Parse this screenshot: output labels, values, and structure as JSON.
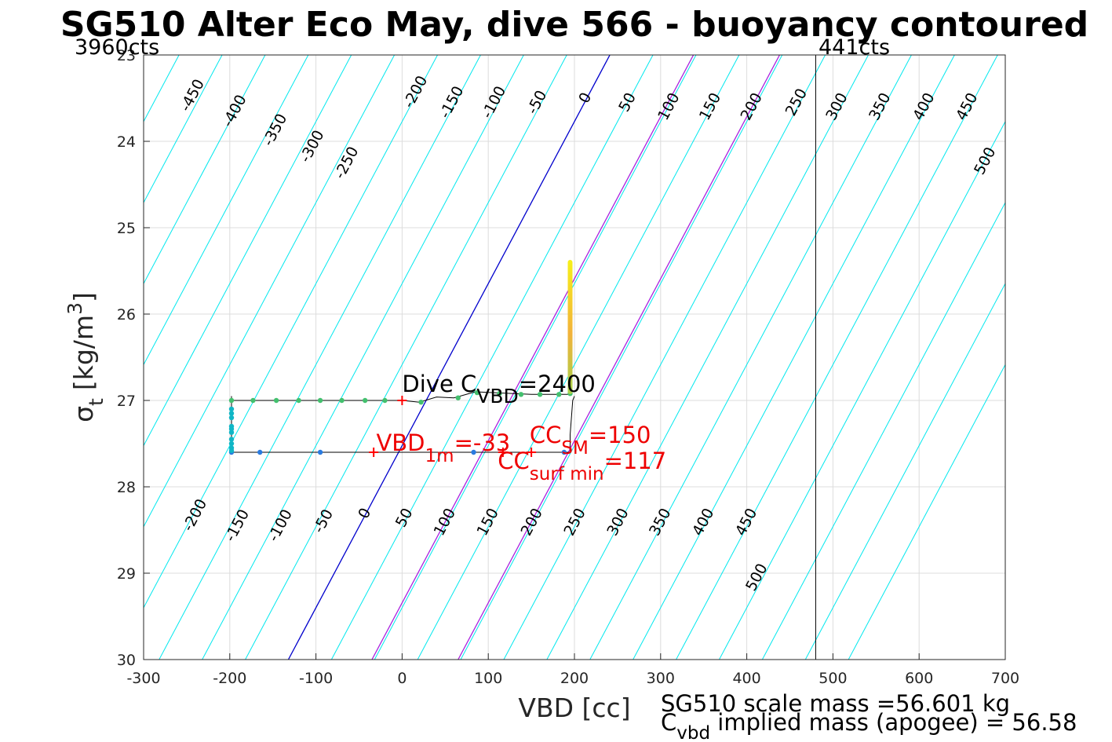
{
  "chart_data": {
    "type": "line",
    "title": "SG510 Alter Eco May, dive 566 - buoyancy contoured",
    "xlabel": "VBD [cc]",
    "ylabel_main": "σ",
    "ylabel_sub": "t",
    "ylabel_units": "[kg/m",
    "ylabel_sup": "3",
    "ylabel_close": "]",
    "xlim": [
      -300,
      700
    ],
    "ylim": [
      23,
      30
    ],
    "y_reversed": true,
    "grid": true,
    "x_ticks": [
      -300,
      -200,
      -100,
      0,
      100,
      200,
      300,
      400,
      500,
      600,
      700
    ],
    "y_ticks": [
      23,
      24,
      25,
      26,
      27,
      28,
      29,
      30
    ],
    "limit_left_label": "3960cts",
    "limit_right_label": "441cts",
    "limit_right_vbd": 480,
    "contours": {
      "levels": [
        -500,
        -450,
        -400,
        -350,
        -300,
        -250,
        -200,
        -150,
        -100,
        -50,
        0,
        50,
        100,
        150,
        200,
        250,
        300,
        350,
        400,
        450,
        500,
        550,
        600,
        650
      ],
      "vbd_at_sigma_30_for_level_0": -132,
      "slope_vbd_per_sigma": -53.3,
      "spacing_vbd_per_50": 50,
      "line_color": "#00e8ee",
      "zero_color": "#0000cc",
      "highlight_color": "#aa22dd",
      "highlight_intercepts_sigma30": [
        -35,
        65
      ],
      "top_labels": [
        {
          "text": "-450",
          "vbd": -243,
          "sigma": 23.47
        },
        {
          "text": "-400",
          "vbd": -194,
          "sigma": 23.65
        },
        {
          "text": "-350",
          "vbd": -147,
          "sigma": 23.87
        },
        {
          "text": "-300",
          "vbd": -104,
          "sigma": 24.06
        },
        {
          "text": "-250",
          "vbd": -64,
          "sigma": 24.25
        },
        {
          "text": "-200",
          "vbd": 16,
          "sigma": 23.43
        },
        {
          "text": "-150",
          "vbd": 58,
          "sigma": 23.55
        },
        {
          "text": "-100",
          "vbd": 107,
          "sigma": 23.55
        },
        {
          "text": "-50",
          "vbd": 157,
          "sigma": 23.55
        },
        {
          "text": "0",
          "vbd": 213,
          "sigma": 23.5
        },
        {
          "text": "50",
          "vbd": 262,
          "sigma": 23.55
        },
        {
          "text": "100",
          "vbd": 310,
          "sigma": 23.6
        },
        {
          "text": "150",
          "vbd": 358,
          "sigma": 23.6
        },
        {
          "text": "200",
          "vbd": 406,
          "sigma": 23.6
        },
        {
          "text": "250",
          "vbd": 458,
          "sigma": 23.55
        },
        {
          "text": "300",
          "vbd": 505,
          "sigma": 23.6
        },
        {
          "text": "350",
          "vbd": 555,
          "sigma": 23.6
        },
        {
          "text": "400",
          "vbd": 606,
          "sigma": 23.6
        },
        {
          "text": "450",
          "vbd": 656,
          "sigma": 23.6
        },
        {
          "text": "500",
          "vbd": 677,
          "sigma": 24.23
        }
      ],
      "bottom_labels": [
        {
          "text": "-200",
          "vbd": -240,
          "sigma": 28.33
        },
        {
          "text": "-150",
          "vbd": -191,
          "sigma": 28.45
        },
        {
          "text": "-100",
          "vbd": -141,
          "sigma": 28.45
        },
        {
          "text": "-50",
          "vbd": -91,
          "sigma": 28.4
        },
        {
          "text": "0",
          "vbd": -43,
          "sigma": 28.31
        },
        {
          "text": "50",
          "vbd": 3,
          "sigma": 28.36
        },
        {
          "text": "100",
          "vbd": 50,
          "sigma": 28.41
        },
        {
          "text": "150",
          "vbd": 100,
          "sigma": 28.41
        },
        {
          "text": "200",
          "vbd": 151,
          "sigma": 28.41
        },
        {
          "text": "250",
          "vbd": 201,
          "sigma": 28.41
        },
        {
          "text": "300",
          "vbd": 251,
          "sigma": 28.41
        },
        {
          "text": "350",
          "vbd": 300,
          "sigma": 28.41
        },
        {
          "text": "400",
          "vbd": 350,
          "sigma": 28.41
        },
        {
          "text": "450",
          "vbd": 400,
          "sigma": 28.41
        },
        {
          "text": "500",
          "vbd": 412,
          "sigma": 29.05
        }
      ]
    },
    "series": [
      {
        "name": "",
        "kind": "trace",
        "color": "#000000",
        "x": [
          -198,
          -198,
          195,
          195,
          198,
          200
        ],
        "y": [
          26.95,
          27.6,
          27.6,
          27.4,
          27.0,
          26.95
        ]
      },
      {
        "name": "",
        "kind": "trace",
        "color": "#000000",
        "x": [
          -198,
          0,
          20,
          40,
          60,
          85,
          150,
          196
        ],
        "y": [
          27.0,
          27.0,
          27.02,
          26.96,
          26.97,
          26.9,
          26.93,
          26.93
        ]
      },
      {
        "name": "",
        "kind": "points",
        "color": "#43c06e",
        "x": [
          -198,
          -173,
          -146,
          -120,
          -95,
          -70,
          -43,
          -20,
          22,
          65,
          87,
          113,
          138,
          160,
          182,
          195
        ],
        "y": [
          27.0,
          27.0,
          27.0,
          27.0,
          27.0,
          27.0,
          27.0,
          27.0,
          27.02,
          26.97,
          26.91,
          26.92,
          26.93,
          26.93,
          26.93,
          26.92
        ]
      },
      {
        "name": "",
        "kind": "points",
        "color": "#2a7be0",
        "x": [
          -198,
          -165,
          -95,
          83,
          188
        ],
        "y": [
          27.6,
          27.6,
          27.6,
          27.6,
          27.6
        ]
      },
      {
        "name": "",
        "kind": "points",
        "color": "#10b6c6",
        "x": [
          -198,
          -198,
          -198,
          -198,
          -198,
          -198,
          -198,
          -198,
          -198,
          -198
        ],
        "y": [
          27.1,
          27.15,
          27.2,
          27.3,
          27.33,
          27.37,
          27.45,
          27.5,
          27.55,
          27.58
        ]
      },
      {
        "name": "",
        "kind": "apogee",
        "color_bottom": "#a8d04a",
        "color_mid": "#f2b23a",
        "color_top": "#f6ee1a",
        "x": [
          195,
          195
        ],
        "y": [
          26.9,
          25.4
        ]
      }
    ],
    "markers": [
      {
        "x": 0,
        "y": 27.0
      },
      {
        "x": -33,
        "y": 27.6
      },
      {
        "x": 117,
        "y": 27.6
      },
      {
        "x": 150,
        "y": 27.6
      }
    ],
    "annotations": {
      "dive_c": {
        "main": "Dive C",
        "sub": "VBD",
        "value": "=2400",
        "vbd": 0,
        "sigma": 26.9
      },
      "vbd_1m": {
        "main": "VBD",
        "sub": "1m",
        "value": "=-33",
        "vbd": -30,
        "sigma": 27.58
      },
      "cc_sm": {
        "main": "CC",
        "sub": "SM",
        "value": "=150",
        "vbd": 148,
        "sigma": 27.49
      },
      "cc_surf": {
        "main": "CC",
        "sub": "surf min",
        "value": "=117",
        "vbd": 111,
        "sigma": 27.79
      }
    },
    "footer": {
      "scale_mass": "SG510 scale mass =56.601 kg",
      "implied_main": "C",
      "implied_sub": "vbd",
      "implied_rest": " implied mass (apogee) = 56.58"
    },
    "colors": {
      "annotation_red": "#ee0000",
      "marker_red": "#ff0000",
      "grid": "#dcdcdc"
    }
  }
}
